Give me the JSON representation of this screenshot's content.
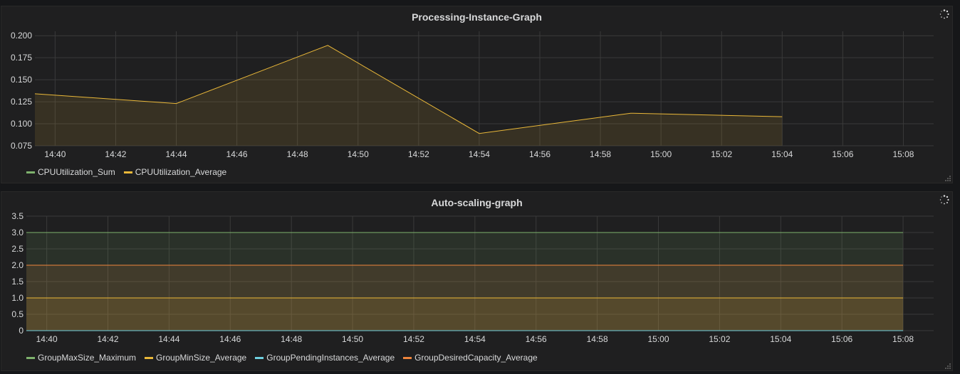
{
  "chart_data": [
    {
      "type": "line",
      "title": "Processing-Instance-Graph",
      "x_ticks": [
        "14:40",
        "14:42",
        "14:44",
        "14:46",
        "14:48",
        "14:50",
        "14:52",
        "14:54",
        "14:56",
        "14:58",
        "15:00",
        "15:02",
        "15:04",
        "15:06",
        "15:08"
      ],
      "xlim": [
        "14:39:20",
        "15:09:00"
      ],
      "ylim": [
        0.075,
        0.205
      ],
      "y_ticks": [
        "0.075",
        "0.100",
        "0.125",
        "0.150",
        "0.175",
        "0.200"
      ],
      "grid": true,
      "legend_position": "bottom-left",
      "series": [
        {
          "name": "CPUUtilization_Sum",
          "color": "#7eb26d",
          "x": [],
          "y": []
        },
        {
          "name": "CPUUtilization_Average",
          "color": "#eab839",
          "x": [
            "14:39:20",
            "14:44:00",
            "14:49:00",
            "14:54:00",
            "14:59:00",
            "15:04:00"
          ],
          "y": [
            0.134,
            0.123,
            0.189,
            0.089,
            0.112,
            0.108
          ]
        }
      ]
    },
    {
      "type": "line",
      "title": "Auto-scaling-graph",
      "x_ticks": [
        "14:40",
        "14:42",
        "14:44",
        "14:46",
        "14:48",
        "14:50",
        "14:52",
        "14:54",
        "14:56",
        "14:58",
        "15:00",
        "15:02",
        "15:04",
        "15:06",
        "15:08"
      ],
      "xlim": [
        "14:39:20",
        "15:09:00"
      ],
      "ylim": [
        0,
        3.5
      ],
      "y_ticks": [
        "0",
        "0.5",
        "1.0",
        "1.5",
        "2.0",
        "2.5",
        "3.0",
        "3.5"
      ],
      "grid": true,
      "legend_position": "bottom-left",
      "series": [
        {
          "name": "GroupMaxSize_Maximum",
          "color": "#7eb26d",
          "x": [
            "14:39:20",
            "15:08:00"
          ],
          "y": [
            3,
            3
          ]
        },
        {
          "name": "GroupMinSize_Average",
          "color": "#eab839",
          "x": [
            "14:39:20",
            "15:08:00"
          ],
          "y": [
            1,
            1
          ]
        },
        {
          "name": "GroupPendingInstances_Average",
          "color": "#6ed0e0",
          "x": [
            "14:39:20",
            "15:08:00"
          ],
          "y": [
            0,
            0
          ]
        },
        {
          "name": "GroupDesiredCapacity_Average",
          "color": "#ef843c",
          "x": [
            "14:39:20",
            "15:08:00"
          ],
          "y": [
            2,
            2
          ]
        }
      ]
    }
  ]
}
